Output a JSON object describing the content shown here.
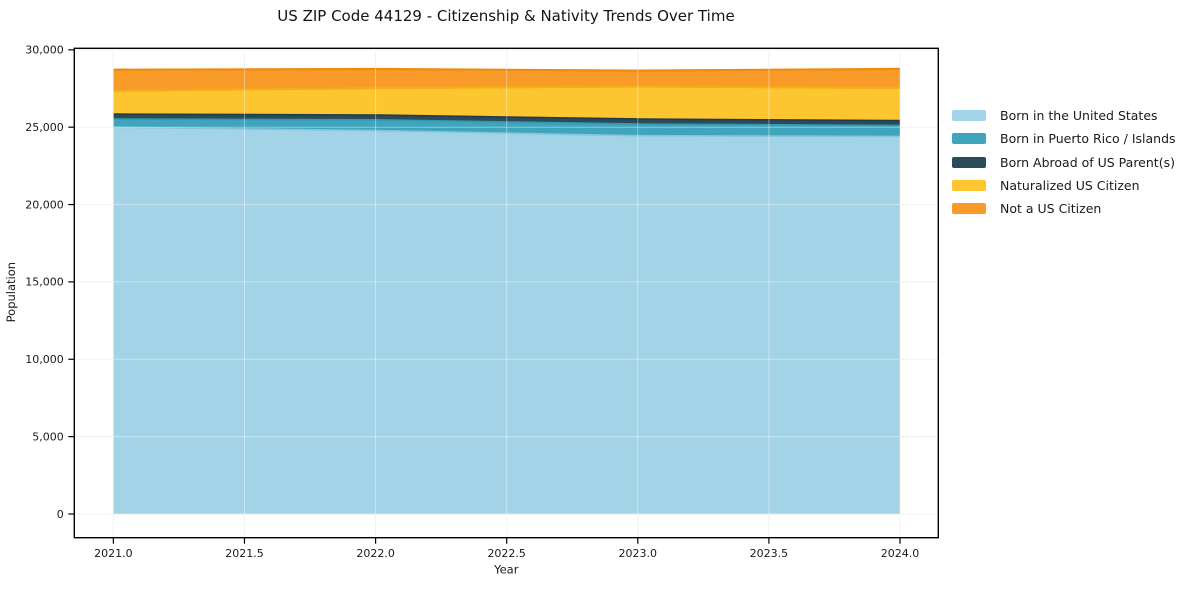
{
  "title": "US ZIP Code 44129 - Citizenship & Nativity Trends Over Time",
  "chart_data": {
    "type": "area",
    "stacked": true,
    "title": "US ZIP Code 44129 - Citizenship & Nativity Trends Over Time",
    "xlabel": "Year",
    "ylabel": "Population",
    "x": [
      2021,
      2022,
      2023,
      2024
    ],
    "series": [
      {
        "name": "Born in the United States",
        "color": "#a3d3e7",
        "edge": "#86c3dc",
        "values": [
          25000,
          24780,
          24450,
          24400
        ]
      },
      {
        "name": "Born in Puerto Rico / Islands",
        "color": "#3fa5bd",
        "edge": "#3697b1",
        "values": [
          530,
          700,
          760,
          710
        ]
      },
      {
        "name": "Born Abroad of US Parent(s)",
        "color": "#2b4a5a",
        "edge": "#223d4a",
        "values": [
          320,
          310,
          320,
          320
        ]
      },
      {
        "name": "Naturalized US Citizen",
        "color": "#fdc52f",
        "edge": "#f2ae18",
        "values": [
          1510,
          1740,
          2100,
          2110
        ]
      },
      {
        "name": "Not a US Citizen",
        "color": "#f89b28",
        "edge": "#ee8a0e",
        "values": [
          1360,
          1230,
          1030,
          1230
        ]
      }
    ],
    "xticks": [
      2021.0,
      2021.5,
      2022.0,
      2022.5,
      2023.0,
      2023.5,
      2024.0
    ],
    "xtick_labels": [
      "2021.0",
      "2021.5",
      "2022.0",
      "2022.5",
      "2023.0",
      "2023.5",
      "2024.0"
    ],
    "yticks": [
      0,
      5000,
      10000,
      15000,
      20000,
      25000,
      30000
    ],
    "ytick_labels": [
      "0",
      "5,000",
      "10,000",
      "15,000",
      "20,000",
      "25,000",
      "30,000"
    ],
    "xlim": [
      2020.851,
      2024.146
    ],
    "ylim": [
      -1533,
      30100
    ],
    "grid": true,
    "legend_position": "right-outside",
    "background": "#ffffff",
    "grid_color": "#e9e9e9",
    "axis_color": "#000000",
    "text_color": "#1a1a1a"
  }
}
